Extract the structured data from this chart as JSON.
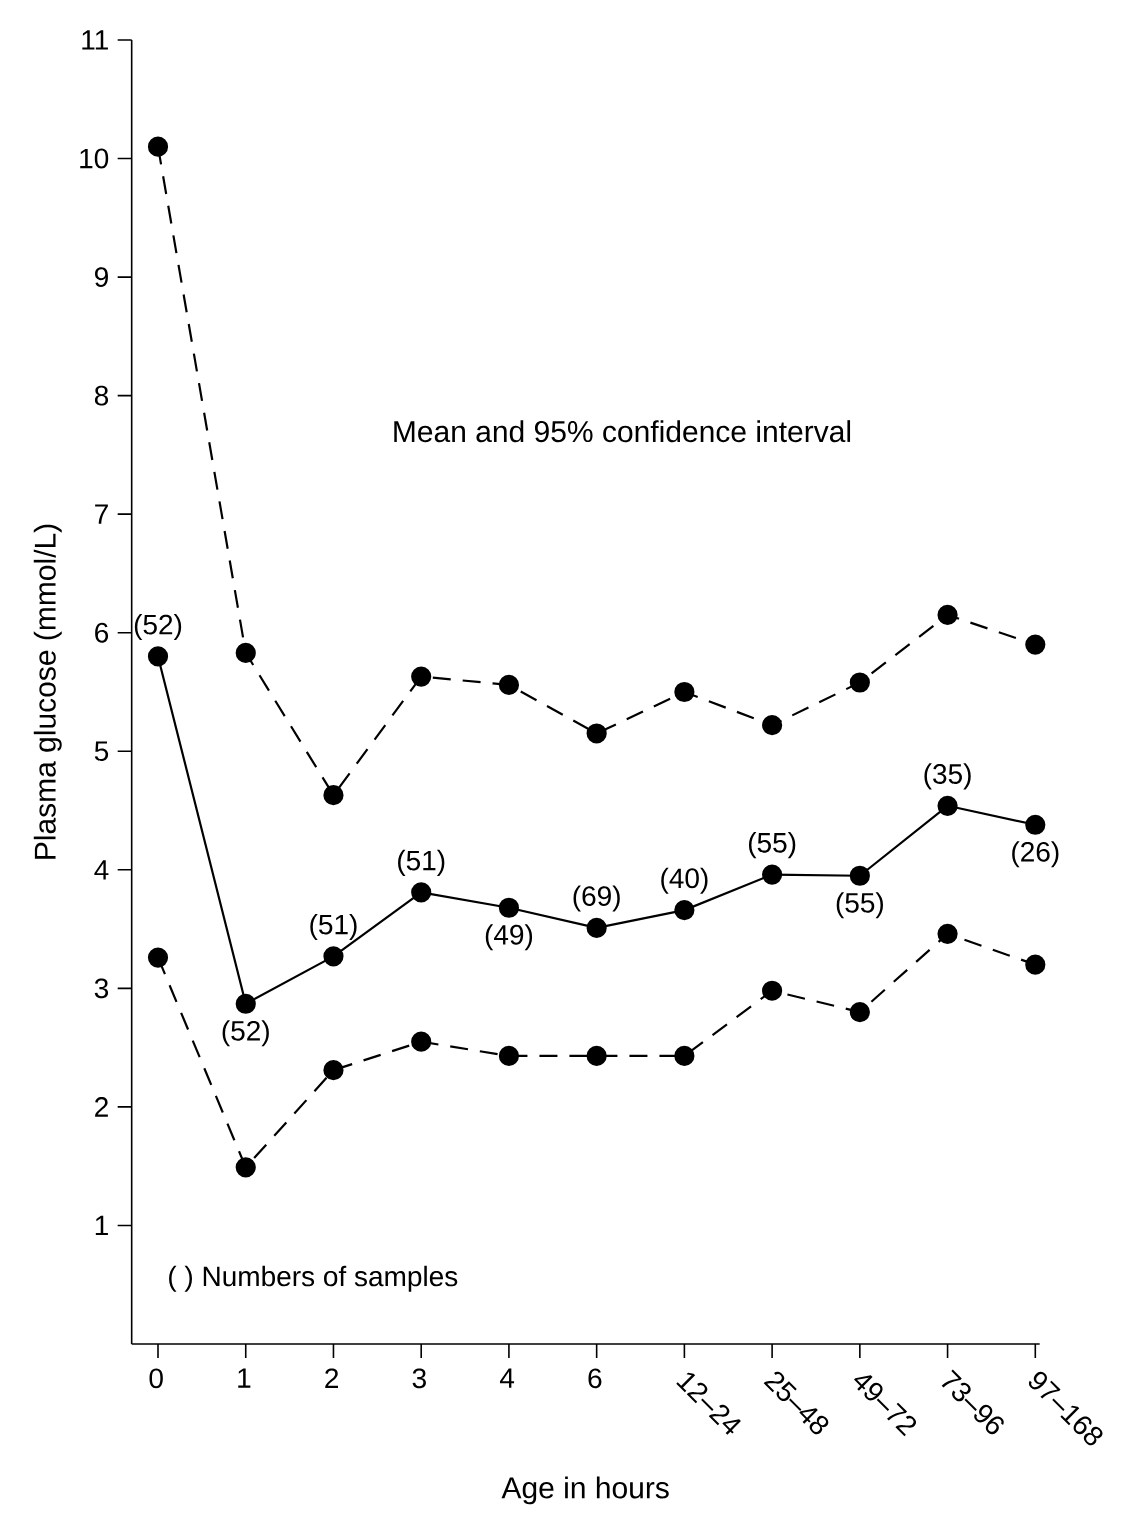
{
  "chart_data": {
    "type": "line",
    "xlabel": "Age in hours",
    "ylabel": "Plasma glucose (mmol/L)",
    "categories": [
      "0",
      "1",
      "2",
      "3",
      "4",
      "6",
      "12–24",
      "25–48",
      "49–72",
      "73–96",
      "97–168"
    ],
    "series": [
      {
        "values": [
          10.1,
          5.83,
          4.63,
          5.63,
          5.56,
          5.15,
          5.5,
          5.22,
          5.58,
          6.15,
          5.9
        ],
        "color": "#000000",
        "line_style": "dashed"
      },
      {
        "values": [
          5.8,
          2.87,
          3.27,
          3.81,
          3.68,
          3.51,
          3.66,
          3.96,
          3.95,
          4.54,
          4.38
        ],
        "color": "#000000",
        "line_style": "solid"
      },
      {
        "values": [
          3.26,
          1.49,
          2.31,
          2.55,
          2.43,
          2.43,
          2.43,
          2.98,
          2.8,
          3.46,
          3.2
        ],
        "color": "#000000",
        "line_style": "dashed"
      }
    ],
    "ylim": [
      0,
      11
    ],
    "yticks": [
      1,
      2,
      3,
      4,
      5,
      6,
      7,
      8,
      9,
      10,
      11
    ],
    "marker": "circle",
    "annotations": [
      "Mean and 95% confidence interval",
      "( ) Numbers of samples",
      {
        "text": "(52)",
        "x": "0",
        "y": 5.8
      },
      {
        "text": "(52)",
        "x": "1",
        "y": 2.87
      },
      {
        "text": "(51)",
        "x": "2",
        "y": 3.27
      },
      {
        "text": "(51)",
        "x": "3",
        "y": 3.81
      },
      {
        "text": "(49)",
        "x": "4",
        "y": 3.68
      },
      {
        "text": "(69)",
        "x": "6",
        "y": 3.51
      },
      {
        "text": "(40)",
        "x": "12–24",
        "y": 3.66
      },
      {
        "text": "(55)",
        "x": "25–48",
        "y": 3.96
      },
      {
        "text": "(55)",
        "x": "49–72",
        "y": 3.95
      },
      {
        "text": "(35)",
        "x": "73–96",
        "y": 4.54
      },
      {
        "text": "(26)",
        "x": "97–168",
        "y": 4.38
      }
    ]
  }
}
